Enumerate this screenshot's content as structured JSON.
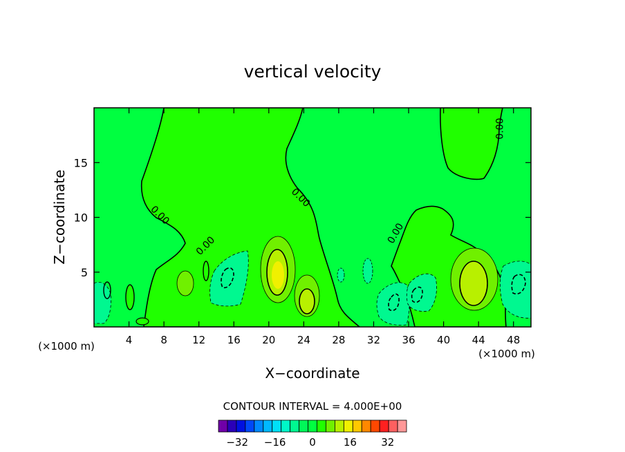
{
  "chart_data": {
    "type": "contour",
    "title": "vertical velocity",
    "xlabel": "X−coordinate",
    "ylabel": "Z−coordinate",
    "x_unit_label": "(×1000 m)",
    "xlim": [
      0,
      50
    ],
    "ylim": [
      0,
      20
    ],
    "x_ticks": [
      4,
      8,
      12,
      16,
      20,
      24,
      28,
      32,
      36,
      40,
      44,
      48
    ],
    "x_tick_labels": [
      "4",
      "8",
      "12",
      "16",
      "20",
      "24",
      "28",
      "32",
      "36",
      "40",
      "44",
      "48"
    ],
    "y_ticks": [
      5,
      10,
      15
    ],
    "y_tick_labels": [
      "5",
      "10",
      "15"
    ],
    "contour_interval_text": "CONTOUR INTERVAL = 4.000E+00",
    "contour_interval": 4,
    "zero_contour_label": "0.00",
    "zero_contour_label_positions": [
      [
        7.3,
        10.0
      ],
      [
        13.0,
        7.2
      ],
      [
        23.4,
        11.6
      ],
      [
        34.8,
        8.4
      ],
      [
        46.8,
        18.1
      ]
    ],
    "background_value": 0,
    "features": [
      {
        "kind": "updraft",
        "x": 21.0,
        "z": 4.5,
        "peak": 9
      },
      {
        "kind": "updraft",
        "x": 24.5,
        "z": 2.3,
        "peak": 6
      },
      {
        "kind": "updraft",
        "x": 43.0,
        "z": 3.9,
        "peak": 8
      },
      {
        "kind": "updraft",
        "x": 10.6,
        "z": 4.0,
        "peak": 4
      },
      {
        "kind": "downdraft",
        "x": 15.5,
        "z": 4.0,
        "peak": -7
      },
      {
        "kind": "downdraft",
        "x": 34.5,
        "z": 2.2,
        "peak": -7
      },
      {
        "kind": "downdraft",
        "x": 37.5,
        "z": 3.3,
        "peak": -6
      },
      {
        "kind": "downdraft",
        "x": 48.2,
        "z": 3.0,
        "peak": -6
      },
      {
        "kind": "downdraft",
        "x": 1.2,
        "z": 1.8,
        "peak": -5
      }
    ],
    "colorbar": {
      "boundaries": [
        -40,
        -36,
        -32,
        -28,
        -24,
        -20,
        -16,
        -12,
        -8,
        -4,
        0,
        4,
        8,
        12,
        16,
        20,
        24,
        28,
        32,
        36,
        40
      ],
      "tick_values": [
        -32,
        -16,
        0,
        16,
        32
      ],
      "tick_labels": [
        "−32",
        "−16",
        "0",
        "16",
        "32"
      ],
      "colors": [
        "#7000A8",
        "#2A00B8",
        "#0010E0",
        "#0048F8",
        "#0088FF",
        "#00B8FF",
        "#00E0F8",
        "#00F8C8",
        "#00F890",
        "#00F858",
        "#00FF40",
        "#20FF00",
        "#70F000",
        "#B8F000",
        "#F0F000",
        "#FFC800",
        "#FF8800",
        "#FF4800",
        "#FF2020",
        "#FF6060",
        "#FF9898"
      ]
    }
  }
}
